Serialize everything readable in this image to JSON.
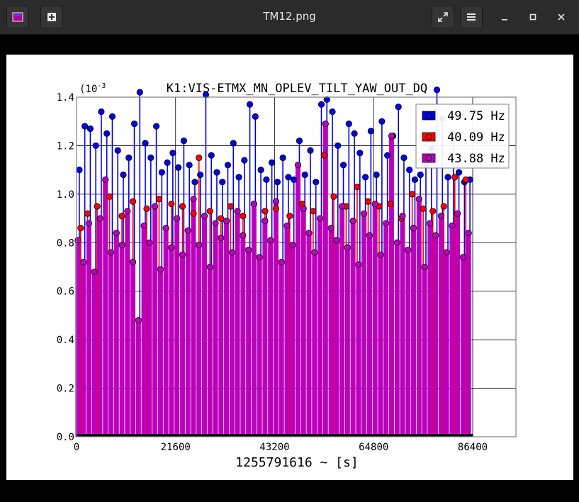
{
  "window": {
    "title": "TM12.png"
  },
  "chart_data": {
    "type": "scatter",
    "style": "stem",
    "title": "K1:VIS-ETMX_MN_OPLEV_TILT_YAW_OUT_DQ",
    "xlabel": "1255791616 ~ [s]",
    "ylabel": "",
    "y_multiplier": "(10^-3",
    "xlim": [
      0,
      86400
    ],
    "ylim": [
      0,
      1.4
    ],
    "xticks": [
      "0",
      "21600",
      "43200",
      "64800",
      "86400"
    ],
    "yticks": [
      "0.0",
      "0.2",
      "0.4",
      "0.6",
      "0.8",
      "1.0",
      "1.2",
      "1.4"
    ],
    "grid": true,
    "legend_position": "top-right",
    "series": [
      {
        "name": "49.75 Hz",
        "color": "#0000e0",
        "marker": "circle",
        "points": [
          [
            600,
            1.1
          ],
          [
            1800,
            1.28
          ],
          [
            3000,
            1.27
          ],
          [
            4200,
            1.2
          ],
          [
            5400,
            1.34
          ],
          [
            6600,
            1.25
          ],
          [
            7800,
            1.32
          ],
          [
            9000,
            1.18
          ],
          [
            10200,
            1.08
          ],
          [
            11400,
            1.15
          ],
          [
            12600,
            1.29
          ],
          [
            13800,
            1.42
          ],
          [
            15000,
            1.21
          ],
          [
            16200,
            1.15
          ],
          [
            17400,
            1.28
          ],
          [
            18600,
            1.09
          ],
          [
            19800,
            1.13
          ],
          [
            21000,
            1.17
          ],
          [
            22200,
            1.11
          ],
          [
            23400,
            1.22
          ],
          [
            24600,
            1.12
          ],
          [
            25800,
            1.05
          ],
          [
            27000,
            1.08
          ],
          [
            28200,
            1.41
          ],
          [
            29400,
            1.16
          ],
          [
            30600,
            1.09
          ],
          [
            31800,
            1.05
          ],
          [
            33000,
            1.12
          ],
          [
            34200,
            1.21
          ],
          [
            35400,
            1.07
          ],
          [
            36600,
            1.14
          ],
          [
            37800,
            1.37
          ],
          [
            39000,
            1.32
          ],
          [
            40200,
            1.1
          ],
          [
            41400,
            1.06
          ],
          [
            42600,
            1.13
          ],
          [
            43800,
            1.05
          ],
          [
            45000,
            1.15
          ],
          [
            46200,
            1.07
          ],
          [
            47400,
            1.06
          ],
          [
            48600,
            1.22
          ],
          [
            49800,
            1.08
          ],
          [
            51000,
            1.18
          ],
          [
            52200,
            1.05
          ],
          [
            53400,
            1.37
          ],
          [
            54600,
            1.39
          ],
          [
            55800,
            1.34
          ],
          [
            57000,
            1.2
          ],
          [
            58200,
            1.12
          ],
          [
            59400,
            1.29
          ],
          [
            60600,
            1.25
          ],
          [
            61800,
            1.17
          ],
          [
            63000,
            1.07
          ],
          [
            64200,
            1.26
          ],
          [
            65400,
            1.08
          ],
          [
            66600,
            1.3
          ],
          [
            67800,
            1.16
          ],
          [
            69000,
            1.24
          ],
          [
            70200,
            1.36
          ],
          [
            71400,
            1.15
          ],
          [
            72600,
            1.1
          ],
          [
            73800,
            1.06
          ],
          [
            75000,
            1.08
          ],
          [
            76200,
            1.12
          ],
          [
            77400,
            1.19
          ],
          [
            78600,
            1.43
          ],
          [
            79800,
            1.31
          ],
          [
            81000,
            1.07
          ],
          [
            82200,
            1.25
          ],
          [
            83400,
            1.09
          ],
          [
            84600,
            1.05
          ],
          [
            85800,
            1.06
          ]
        ]
      },
      {
        "name": "40.09 Hz",
        "color": "#ff0000",
        "marker": "circle",
        "points": [
          [
            900,
            0.86
          ],
          [
            2400,
            0.92
          ],
          [
            4500,
            0.95
          ],
          [
            7200,
            0.99
          ],
          [
            9900,
            0.91
          ],
          [
            12300,
            0.97
          ],
          [
            15300,
            0.94
          ],
          [
            18000,
            0.98
          ],
          [
            20700,
            0.96
          ],
          [
            23100,
            0.95
          ],
          [
            25500,
            0.92
          ],
          [
            26700,
            1.15
          ],
          [
            29100,
            0.93
          ],
          [
            31500,
            0.9
          ],
          [
            33600,
            0.95
          ],
          [
            36300,
            0.91
          ],
          [
            38700,
            0.96
          ],
          [
            41100,
            0.93
          ],
          [
            43500,
            0.94
          ],
          [
            46500,
            0.91
          ],
          [
            49200,
            0.96
          ],
          [
            51600,
            0.93
          ],
          [
            54000,
            1.16
          ],
          [
            56100,
            0.99
          ],
          [
            58800,
            0.95
          ],
          [
            61200,
            1.03
          ],
          [
            63600,
            0.97
          ],
          [
            66000,
            0.95
          ],
          [
            68400,
            0.96
          ],
          [
            70800,
            0.9
          ],
          [
            73200,
            1.0
          ],
          [
            75600,
            0.94
          ],
          [
            77700,
            0.93
          ],
          [
            80100,
            0.95
          ],
          [
            82500,
            1.07
          ],
          [
            84900,
            1.06
          ]
        ]
      },
      {
        "name": "43.88 Hz",
        "color": "#bb00bb",
        "marker": "circle",
        "points": [
          [
            300,
            0.81
          ],
          [
            1500,
            0.72
          ],
          [
            2700,
            0.88
          ],
          [
            3900,
            0.68
          ],
          [
            5100,
            0.9
          ],
          [
            6300,
            1.06
          ],
          [
            7500,
            0.76
          ],
          [
            8700,
            0.84
          ],
          [
            9900,
            0.79
          ],
          [
            11100,
            0.93
          ],
          [
            12300,
            0.72
          ],
          [
            13500,
            0.48
          ],
          [
            14700,
            0.87
          ],
          [
            15900,
            0.8
          ],
          [
            17100,
            0.95
          ],
          [
            18300,
            0.69
          ],
          [
            19500,
            0.86
          ],
          [
            20700,
            0.78
          ],
          [
            21900,
            0.9
          ],
          [
            23100,
            0.75
          ],
          [
            24300,
            0.85
          ],
          [
            25500,
            0.98
          ],
          [
            26700,
            0.79
          ],
          [
            27900,
            0.91
          ],
          [
            29100,
            0.7
          ],
          [
            30300,
            0.88
          ],
          [
            31500,
            0.82
          ],
          [
            32700,
            0.89
          ],
          [
            33900,
            0.76
          ],
          [
            35100,
            0.93
          ],
          [
            36300,
            0.83
          ],
          [
            37500,
            0.77
          ],
          [
            38700,
            0.96
          ],
          [
            39900,
            0.74
          ],
          [
            41100,
            0.89
          ],
          [
            42300,
            0.81
          ],
          [
            43500,
            0.97
          ],
          [
            44700,
            0.72
          ],
          [
            45900,
            0.87
          ],
          [
            47100,
            0.79
          ],
          [
            48300,
            1.12
          ],
          [
            49500,
            0.94
          ],
          [
            50700,
            0.84
          ],
          [
            51900,
            0.76
          ],
          [
            53100,
            0.9
          ],
          [
            54300,
            1.29
          ],
          [
            55500,
            0.86
          ],
          [
            56700,
            0.81
          ],
          [
            57900,
            0.95
          ],
          [
            59100,
            0.78
          ],
          [
            60300,
            0.89
          ],
          [
            61500,
            0.71
          ],
          [
            62700,
            0.92
          ],
          [
            63900,
            0.83
          ],
          [
            65100,
            0.96
          ],
          [
            66300,
            0.75
          ],
          [
            67500,
            0.88
          ],
          [
            68700,
            1.24
          ],
          [
            69900,
            0.8
          ],
          [
            71100,
            0.91
          ],
          [
            72300,
            0.77
          ],
          [
            73500,
            0.86
          ],
          [
            74700,
            0.98
          ],
          [
            75900,
            0.7
          ],
          [
            77100,
            0.88
          ],
          [
            78300,
            0.83
          ],
          [
            79500,
            0.91
          ],
          [
            80700,
            0.76
          ],
          [
            81900,
            0.87
          ],
          [
            83100,
            0.92
          ],
          [
            84300,
            0.74
          ],
          [
            85500,
            0.84
          ]
        ]
      }
    ]
  }
}
